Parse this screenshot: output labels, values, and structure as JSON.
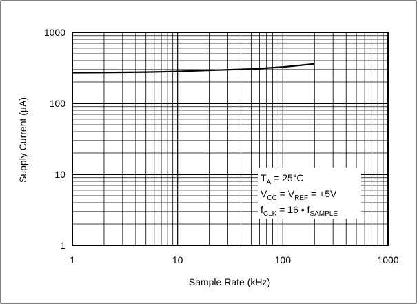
{
  "chart_data": {
    "type": "line",
    "x_scale": "log",
    "y_scale": "log",
    "xlim": [
      1,
      1000
    ],
    "ylim": [
      1,
      1000
    ],
    "xlabel": "Sample Rate (kHz)",
    "ylabel": "Supply Current (µA)",
    "x_ticks": [
      "1",
      "10",
      "100",
      "1000"
    ],
    "y_ticks": [
      "1",
      "10",
      "100",
      "1000"
    ],
    "grid": true,
    "series": [
      {
        "x": [
          1,
          2,
          5,
          10,
          20,
          50,
          100,
          150,
          200
        ],
        "y": [
          270,
          272,
          276,
          282,
          292,
          305,
          325,
          345,
          360
        ]
      }
    ],
    "annotation": {
      "line1": {
        "main": "T",
        "sub": "A",
        "rest": " = 25°C"
      },
      "line2": {
        "main1": "V",
        "sub1": "CC",
        "mid": " = V",
        "sub2": "REF",
        "rest": " = +5V"
      },
      "line3": {
        "main1": "f",
        "sub1": "CLK",
        "mid": " = 16 • f",
        "sub2": "SAMPLE"
      }
    },
    "line_color": "#000000",
    "grid_color": "#000000"
  }
}
